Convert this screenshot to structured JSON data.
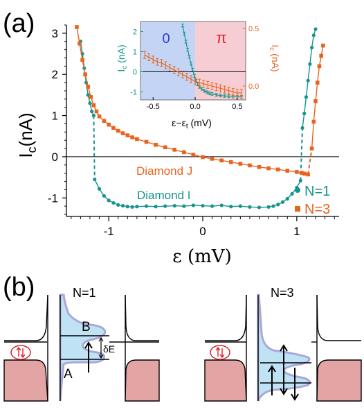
{
  "panel_a": {
    "label": "(a)",
    "y_axis_label_main": "I",
    "y_axis_label_sub": "c",
    "y_axis_label_unit": "(nA)",
    "x_axis_label": "ε  (mV)",
    "curve_labels": {
      "j": "Diamond J",
      "i": "Diamond I"
    },
    "legend": [
      {
        "name": "N=1",
        "color": "#14948c",
        "marker": "circle"
      },
      {
        "name": "N=3",
        "color": "#e8641e",
        "marker": "square"
      }
    ],
    "inset": {
      "left_axis_label": "I",
      "left_axis_sub": "c",
      "left_axis_unit": " (nA)",
      "right_axis_label": "I",
      "right_axis_sub": "c",
      "right_axis_unit": " (nA)",
      "x_label": "ε−ε",
      "x_label_sub": "t",
      "x_label_unit": " (mV)",
      "region_left_label": "0",
      "region_right_label": "π",
      "region_left_color": "#c4d4f4",
      "region_right_color": "#f6cdd2"
    }
  },
  "chart_data": [
    {
      "type": "line",
      "xlabel": "ε  (mV)",
      "ylabel": "Ic(nA)",
      "xlim": [
        -1.45,
        1.45
      ],
      "ylim": [
        -1.45,
        3.2
      ],
      "x_ticks": [
        -1,
        0,
        1
      ],
      "y_ticks": [
        -1,
        0,
        1,
        2,
        3
      ],
      "series": [
        {
          "name": "N=1",
          "color": "#14948c",
          "marker": "circle",
          "segments": [
            {
              "x": [
                -1.3,
                -1.28,
                -1.26,
                -1.24,
                -1.22,
                -1.2,
                -1.18,
                -1.16
              ],
              "y": [
                2.8,
                2.5,
                2.15,
                1.8,
                1.5,
                1.3,
                1.1,
                1.0
              ]
            },
            {
              "x": [
                -1.15,
                -1.1,
                -1.05,
                -1.0,
                -0.95,
                -0.9,
                -0.85,
                -0.8,
                -0.75,
                -0.7,
                -0.6,
                -0.5,
                -0.4,
                -0.3,
                -0.2,
                -0.1,
                0.0,
                0.1,
                0.2,
                0.3,
                0.4,
                0.5,
                0.6,
                0.7,
                0.75,
                0.8,
                0.85,
                0.9,
                0.95,
                1.0,
                1.04
              ],
              "y": [
                -0.55,
                -0.78,
                -0.95,
                -1.06,
                -1.12,
                -1.17,
                -1.19,
                -1.21,
                -1.22,
                -1.21,
                -1.2,
                -1.21,
                -1.2,
                -1.19,
                -1.2,
                -1.18,
                -1.19,
                -1.2,
                -1.18,
                -1.21,
                -1.2,
                -1.22,
                -1.23,
                -1.22,
                -1.2,
                -1.16,
                -1.1,
                -1.02,
                -0.9,
                -0.75,
                -0.58
              ]
            },
            {
              "x": [
                1.06,
                1.08,
                1.1,
                1.12,
                1.14,
                1.16,
                1.18,
                1.2
              ],
              "y": [
                0.7,
                1.05,
                1.45,
                1.85,
                2.25,
                2.65,
                2.95,
                3.1
              ]
            }
          ]
        },
        {
          "name": "N=3",
          "color": "#e8641e",
          "marker": "square",
          "segments": [
            {
              "x": [
                -1.34,
                -1.31,
                -1.28,
                -1.25,
                -1.22,
                -1.19,
                -1.16,
                -1.13,
                -1.1,
                -1.05,
                -1.0,
                -0.95,
                -0.9,
                -0.85,
                -0.8,
                -0.75,
                -0.7,
                -0.6,
                -0.5,
                -0.4,
                -0.3,
                -0.2,
                -0.1,
                0.0,
                0.1,
                0.2,
                0.3,
                0.4,
                0.5,
                0.6,
                0.7,
                0.8,
                0.9,
                1.0,
                1.05,
                1.08,
                1.12
              ],
              "y": [
                3.15,
                2.75,
                2.35,
                2.0,
                1.7,
                1.45,
                1.25,
                1.1,
                0.98,
                0.87,
                0.78,
                0.7,
                0.63,
                0.57,
                0.52,
                0.47,
                0.43,
                0.36,
                0.29,
                0.23,
                0.17,
                0.11,
                0.05,
                -0.01,
                -0.05,
                -0.09,
                -0.13,
                -0.17,
                -0.21,
                -0.25,
                -0.28,
                -0.31,
                -0.34,
                -0.37,
                -0.39,
                -0.41,
                -0.43
              ]
            },
            {
              "x": [
                1.16,
                1.18,
                1.2,
                1.22,
                1.24,
                1.26,
                1.28
              ],
              "y": [
                0.2,
                0.85,
                1.35,
                1.8,
                2.2,
                2.45,
                2.7
              ]
            }
          ],
          "jumps": [
            [
              1.14,
              -0.43,
              0.0
            ]
          ]
        }
      ]
    },
    {
      "type": "line",
      "xlabel": "ε−εt (mV)",
      "ylabel": "Ic (nA)",
      "xlim": [
        -0.65,
        0.6
      ],
      "ylim_left": [
        -1.4,
        2.5
      ],
      "ylim_right": [
        -0.12,
        0.56
      ],
      "x_ticks": [
        -0.5,
        0.0,
        0.5
      ],
      "y_ticks_left": [
        -1,
        0,
        1,
        2
      ],
      "y_ticks_right": [
        0.0,
        0.5
      ],
      "series": [
        {
          "name": "N=1",
          "color": "#14948c",
          "axis": "left",
          "x": [
            -0.15,
            -0.13,
            -0.11,
            -0.09,
            -0.07,
            -0.05,
            -0.03,
            -0.01,
            0.01,
            0.03,
            0.05,
            0.08,
            0.11,
            0.14,
            0.17,
            0.2,
            0.25,
            0.3,
            0.35,
            0.4,
            0.45,
            0.5,
            0.55
          ],
          "y": [
            2.3,
            1.9,
            1.5,
            1.1,
            0.75,
            0.4,
            0.1,
            -0.2,
            -0.45,
            -0.62,
            -0.75,
            -0.85,
            -0.95,
            -1.02,
            -1.07,
            -1.1,
            -1.15,
            -1.18,
            -1.2,
            -1.22,
            -1.23,
            -1.24,
            -1.25
          ]
        },
        {
          "name": "N=3",
          "color": "#e8641e",
          "axis": "right",
          "x": [
            -0.6,
            -0.55,
            -0.5,
            -0.45,
            -0.4,
            -0.35,
            -0.3,
            -0.25,
            -0.2,
            -0.15,
            -0.1,
            -0.05,
            0.0,
            0.05,
            0.1,
            0.15,
            0.2,
            0.25,
            0.3,
            0.35,
            0.4,
            0.45,
            0.5,
            0.55
          ],
          "y": [
            0.27,
            0.25,
            0.23,
            0.21,
            0.2,
            0.18,
            0.16,
            0.14,
            0.12,
            0.1,
            0.08,
            0.06,
            0.04,
            0.03,
            0.02,
            0.01,
            0.0,
            -0.01,
            -0.02,
            -0.03,
            -0.04,
            -0.05,
            -0.06,
            -0.06
          ]
        }
      ]
    }
  ],
  "panel_b": {
    "label": "(b)",
    "left": {
      "title": "N=1",
      "label_B": "B",
      "label_A": "A",
      "label_dE": "δE"
    },
    "right": {
      "title": "N=3"
    },
    "dos_fill_color": "#e3a4a4",
    "dot_fill_color": "#bfe3f5",
    "dot_stroke_color": "#a9a8d6",
    "spin_color": "#d8202a"
  }
}
